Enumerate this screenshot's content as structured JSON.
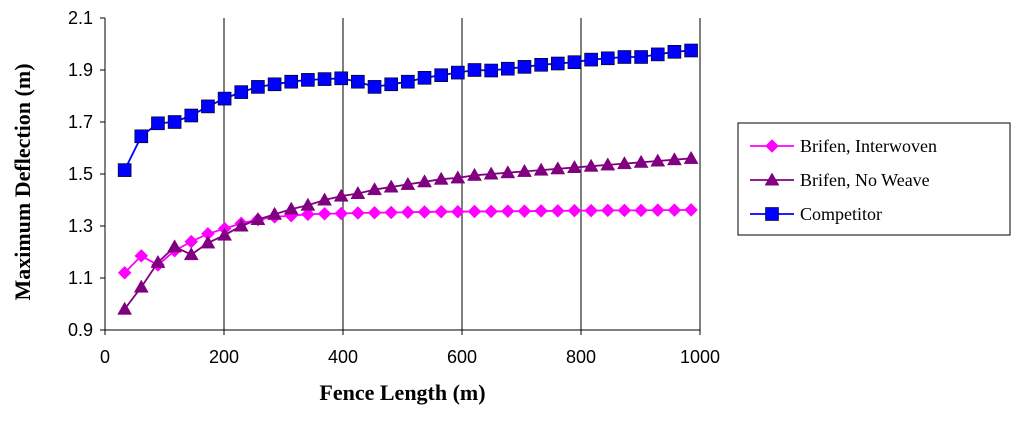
{
  "chart_data": {
    "type": "line",
    "xlabel": "Fence Length (m)",
    "ylabel": "Maximum Deflection (m)",
    "xlim": [
      0,
      1000
    ],
    "ylim": [
      0.9,
      2.1
    ],
    "xticks": [
      0,
      200,
      400,
      600,
      800,
      1000
    ],
    "xtick_labels": [
      "0",
      "200",
      "400",
      "600",
      "800",
      "1000"
    ],
    "yticks": [
      0.9,
      1.1,
      1.3,
      1.5,
      1.7,
      1.9,
      2.1
    ],
    "ytick_labels": [
      "0.9",
      "1.1",
      "1.3",
      "1.5",
      "1.7",
      "1.9",
      "2.1"
    ],
    "grid": "vertical",
    "legend_position": "right",
    "x": [
      33,
      61,
      89,
      117,
      145,
      173,
      201,
      229,
      257,
      285,
      313,
      341,
      369,
      397,
      425,
      453,
      481,
      509,
      537,
      565,
      593,
      621,
      649,
      677,
      705,
      733,
      761,
      789,
      817,
      845,
      873,
      901,
      929,
      957,
      985
    ],
    "series": [
      {
        "name": "Brifen, Interwoven",
        "color": "#ff00ff",
        "marker": "diamond",
        "values": [
          1.12,
          1.185,
          1.15,
          1.205,
          1.24,
          1.27,
          1.29,
          1.31,
          1.325,
          1.335,
          1.34,
          1.345,
          1.347,
          1.348,
          1.35,
          1.351,
          1.352,
          1.353,
          1.354,
          1.355,
          1.355,
          1.356,
          1.356,
          1.357,
          1.357,
          1.358,
          1.358,
          1.359,
          1.359,
          1.36,
          1.36,
          1.36,
          1.361,
          1.361,
          1.362
        ]
      },
      {
        "name": "Brifen, No Weave",
        "color": "#800080",
        "marker": "triangle",
        "values": [
          0.98,
          1.065,
          1.16,
          1.22,
          1.19,
          1.235,
          1.265,
          1.3,
          1.325,
          1.345,
          1.365,
          1.38,
          1.4,
          1.415,
          1.425,
          1.44,
          1.45,
          1.46,
          1.47,
          1.48,
          1.485,
          1.495,
          1.5,
          1.505,
          1.51,
          1.515,
          1.52,
          1.525,
          1.53,
          1.535,
          1.54,
          1.545,
          1.55,
          1.555,
          1.56
        ]
      },
      {
        "name": "Competitor",
        "color": "#0000ff",
        "marker": "square",
        "values": [
          1.515,
          1.645,
          1.695,
          1.7,
          1.725,
          1.76,
          1.79,
          1.815,
          1.835,
          1.845,
          1.855,
          1.862,
          1.865,
          1.868,
          1.855,
          1.835,
          1.845,
          1.855,
          1.87,
          1.88,
          1.89,
          1.9,
          1.898,
          1.905,
          1.912,
          1.92,
          1.925,
          1.93,
          1.94,
          1.945,
          1.95,
          1.95,
          1.96,
          1.97,
          1.975
        ]
      }
    ]
  }
}
